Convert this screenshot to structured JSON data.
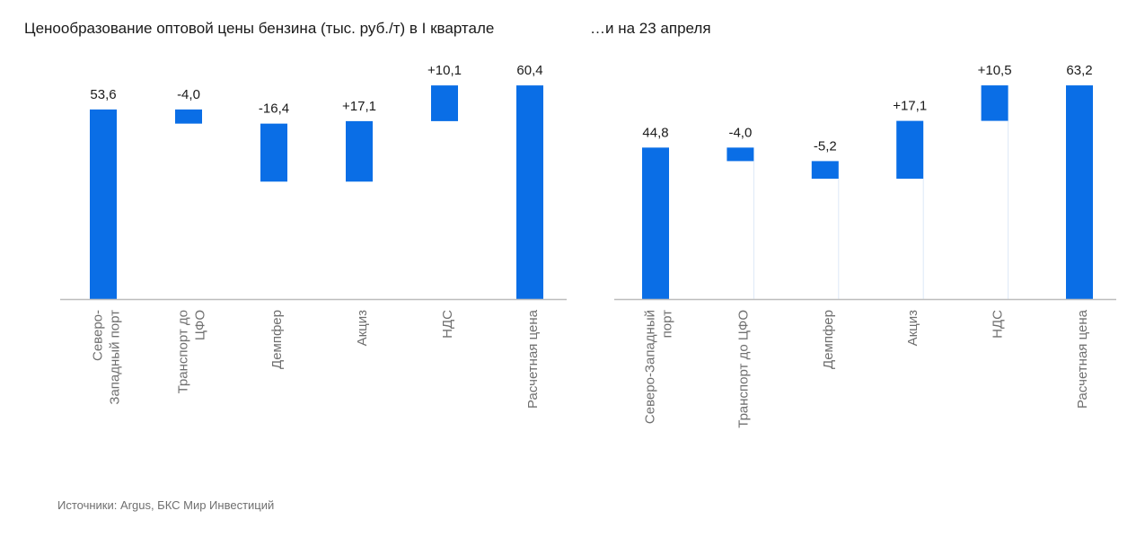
{
  "chart_data": [
    {
      "type": "bar",
      "subtype": "waterfall",
      "title": "Ценообразование оптовой цены бензина (тыс. руб./т) в I квартале",
      "categories": [
        [
          "Северо-",
          "Западный порт"
        ],
        [
          "Транспорт до",
          "ЦФО"
        ],
        [
          "Демпфер"
        ],
        [
          "Акциз"
        ],
        [
          "НДС"
        ],
        [
          "Расчетная цена"
        ]
      ],
      "values": [
        53.6,
        -4.0,
        -16.4,
        17.1,
        10.1,
        60.4
      ],
      "value_labels": [
        "53,6",
        "-4,0",
        "-16,4",
        "+17,1",
        "+10,1",
        "60,4"
      ],
      "bar_kind": [
        "total",
        "delta",
        "delta",
        "delta",
        "delta",
        "total"
      ],
      "ylim": [
        0,
        65
      ],
      "grid": false,
      "color": "#0a6ee6"
    },
    {
      "type": "bar",
      "subtype": "waterfall",
      "title": "…и на 23 апреля",
      "categories": [
        [
          "Северо-Западный",
          "порт"
        ],
        [
          "Транспорт до ЦФО"
        ],
        [
          "Демпфер"
        ],
        [
          "Акциз"
        ],
        [
          "НДС"
        ],
        [
          "Расчетная цена"
        ]
      ],
      "values": [
        44.8,
        -4.0,
        -5.2,
        17.1,
        10.5,
        63.2
      ],
      "value_labels": [
        "44,8",
        "-4,0",
        "-5,2",
        "+17,1",
        "+10,5",
        "63,2"
      ],
      "bar_kind": [
        "total",
        "delta",
        "delta",
        "delta",
        "delta",
        "total"
      ],
      "ylim": [
        0,
        68
      ],
      "grid": false,
      "color": "#0a6ee6"
    }
  ],
  "footer": {
    "source": "Источники: Argus, БКС Мир Инвестиций"
  }
}
